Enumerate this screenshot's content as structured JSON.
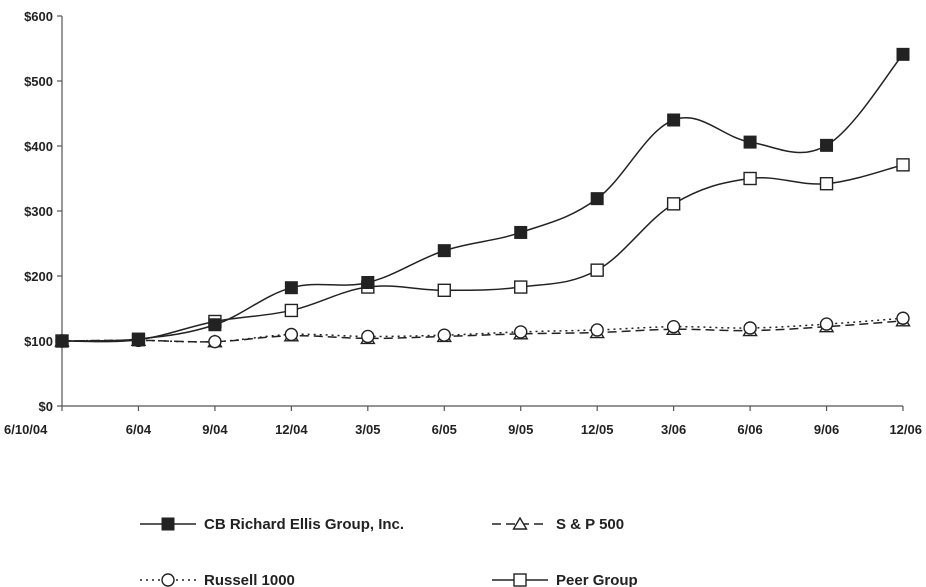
{
  "chart_data": {
    "type": "line",
    "title": "",
    "xlabel": "",
    "ylabel": "",
    "categories": [
      "6/10/04",
      "6/04",
      "9/04",
      "12/04",
      "3/05",
      "6/05",
      "9/05",
      "12/05",
      "3/06",
      "6/06",
      "9/06",
      "12/06"
    ],
    "ylim": [
      0,
      600
    ],
    "yticks": [
      0,
      100,
      200,
      300,
      400,
      500,
      600
    ],
    "ytick_labels": [
      "$0",
      "$100",
      "$200",
      "$300",
      "$400",
      "$500",
      "$600"
    ],
    "grid": false,
    "legend_position": "bottom",
    "series": [
      {
        "name": "CB Richard Ellis Group, Inc.",
        "marker": "filled-square",
        "dash": "solid",
        "color": "#222222",
        "values": [
          100,
          103,
          125,
          182,
          190,
          239,
          267,
          319,
          440,
          406,
          401,
          541
        ]
      },
      {
        "name": "S & P 500",
        "marker": "open-triangle",
        "dash": "dashed",
        "color": "#222222",
        "values": [
          100,
          101,
          99,
          108,
          104,
          107,
          111,
          113,
          118,
          116,
          122,
          131
        ]
      },
      {
        "name": "Russell 1000",
        "marker": "open-circle",
        "dash": "dotted",
        "color": "#222222",
        "values": [
          100,
          101,
          99,
          110,
          107,
          109,
          114,
          117,
          122,
          120,
          126,
          135
        ]
      },
      {
        "name": "Peer Group",
        "marker": "open-square",
        "dash": "solid",
        "color": "#222222",
        "values": [
          100,
          102,
          130,
          147,
          183,
          178,
          183,
          209,
          311,
          350,
          342,
          371
        ]
      }
    ]
  }
}
